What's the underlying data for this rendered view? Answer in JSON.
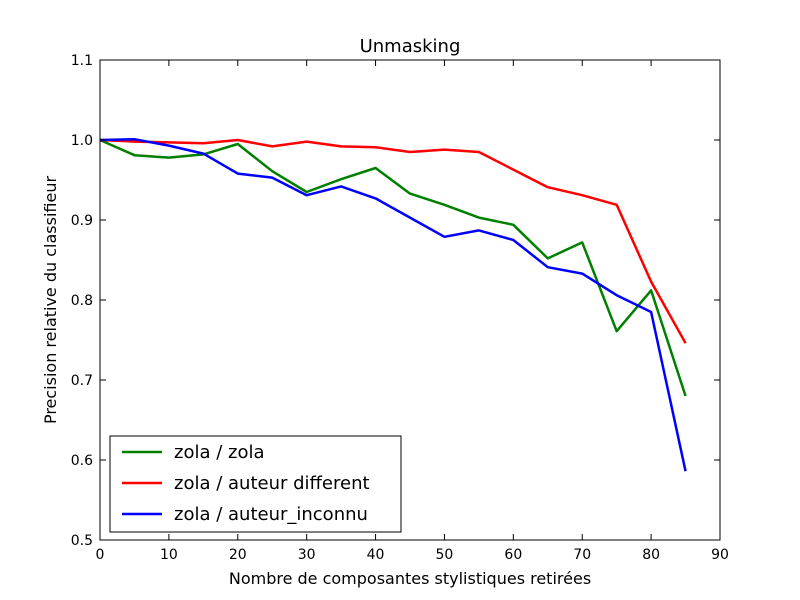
{
  "chart_data": {
    "type": "line",
    "title": "Unmasking",
    "xlabel": "Nombre de composantes stylistiques retirées",
    "ylabel": "Precision relative du classifieur",
    "xlim": [
      0,
      90
    ],
    "ylim": [
      0.5,
      1.1
    ],
    "xticks": [
      0,
      10,
      20,
      30,
      40,
      50,
      60,
      70,
      80,
      90
    ],
    "yticks": [
      0.5,
      0.6,
      0.7,
      0.8,
      0.9,
      1.0,
      1.1
    ],
    "xtick_labels": [
      "0",
      "10",
      "20",
      "30",
      "40",
      "50",
      "60",
      "70",
      "80",
      "90"
    ],
    "ytick_labels": [
      "0.5",
      "0.6",
      "0.7",
      "0.8",
      "0.9",
      "1.0",
      "1.1"
    ],
    "grid": false,
    "legend_position": "lower-left",
    "x": [
      0,
      5,
      10,
      15,
      20,
      25,
      30,
      35,
      40,
      45,
      50,
      55,
      60,
      65,
      70,
      75,
      80,
      85
    ],
    "series": [
      {
        "name": "zola / zola",
        "color": "#008000",
        "values": [
          1.0,
          0.981,
          0.978,
          0.982,
          0.995,
          0.961,
          0.935,
          0.951,
          0.965,
          0.933,
          0.919,
          0.903,
          0.894,
          0.852,
          0.872,
          0.761,
          0.812,
          0.68
        ]
      },
      {
        "name": "zola / auteur different",
        "color": "#ff0000",
        "values": [
          1.0,
          0.998,
          0.997,
          0.996,
          1.0,
          0.992,
          0.998,
          0.992,
          0.991,
          0.985,
          0.988,
          0.985,
          0.963,
          0.941,
          0.931,
          0.919,
          0.823,
          0.746
        ]
      },
      {
        "name": "zola / auteur_inconnu",
        "color": "#0000ff",
        "values": [
          1.0,
          1.001,
          0.993,
          0.983,
          0.958,
          0.953,
          0.931,
          0.942,
          0.927,
          0.903,
          0.879,
          0.887,
          0.875,
          0.841,
          0.833,
          0.806,
          0.785,
          0.586
        ]
      }
    ]
  }
}
